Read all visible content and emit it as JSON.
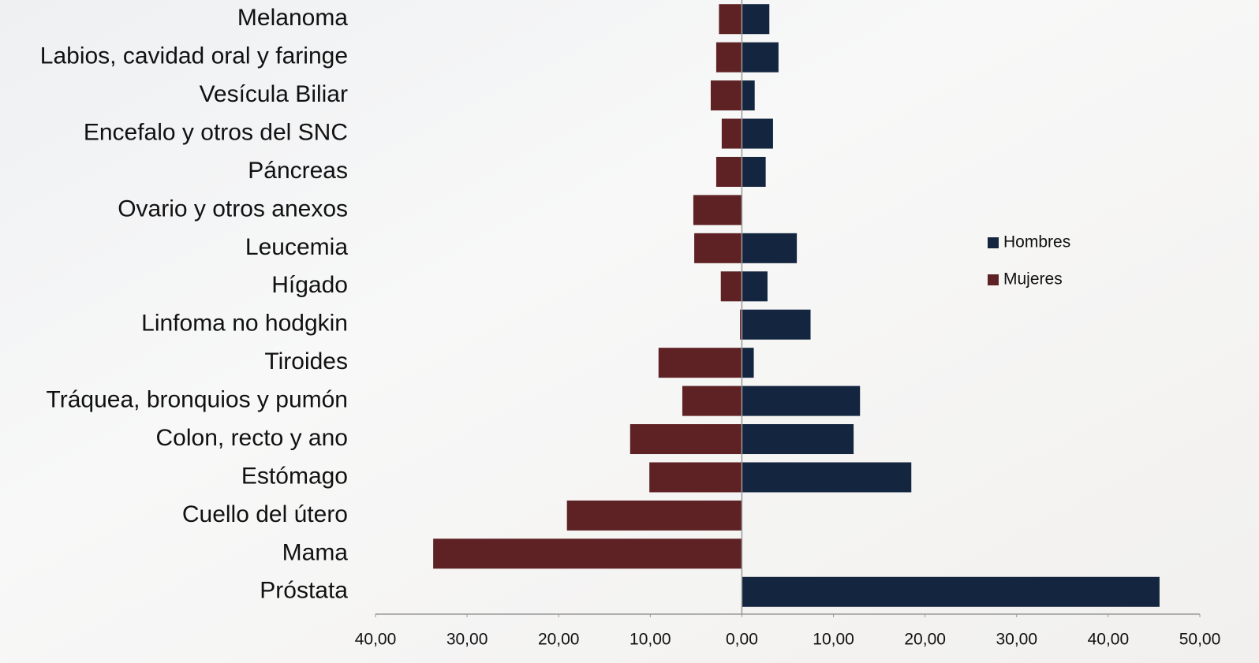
{
  "chart_data": {
    "type": "butterfly-bar",
    "categories": [
      "Melanoma",
      "Labios, cavidad oral y faringe",
      "Vesícula Biliar",
      "Encefalo y otros del SNC",
      "Páncreas",
      "Ovario y otros anexos",
      "Leucemia",
      "Hígado",
      "Linfoma no hodgkin",
      "Tiroides",
      "Tráquea, bronquios y pumón",
      "Colon, recto y ano",
      "Estómago",
      "Cuello del útero",
      "Mama",
      "Próstata"
    ],
    "series": [
      {
        "name": "Hombres",
        "color": "#14253f",
        "values": [
          3.0,
          4.0,
          1.4,
          3.4,
          2.6,
          0,
          6.0,
          2.8,
          7.5,
          1.3,
          12.9,
          12.2,
          18.5,
          0,
          0,
          45.6
        ]
      },
      {
        "name": "Mujeres",
        "color": "#5e2224",
        "values": [
          -2.5,
          -2.8,
          -3.4,
          -2.2,
          -2.8,
          -5.3,
          -5.2,
          -2.3,
          -0.2,
          -9.1,
          -6.5,
          -12.2,
          -10.1,
          -19.1,
          -33.7,
          0
        ]
      }
    ],
    "xlim": [
      -40,
      50
    ],
    "xticks": [
      {
        "value": -40,
        "label": "40,00"
      },
      {
        "value": -30,
        "label": "30,00"
      },
      {
        "value": -20,
        "label": "20,00"
      },
      {
        "value": -10,
        "label": "10,00"
      },
      {
        "value": 0,
        "label": "0,00"
      },
      {
        "value": 10,
        "label": "10,00"
      },
      {
        "value": 20,
        "label": "20,00"
      },
      {
        "value": 30,
        "label": "30,00"
      },
      {
        "value": 40,
        "label": "40,00"
      },
      {
        "value": 50,
        "label": "50,00"
      }
    ],
    "legend": "right"
  }
}
